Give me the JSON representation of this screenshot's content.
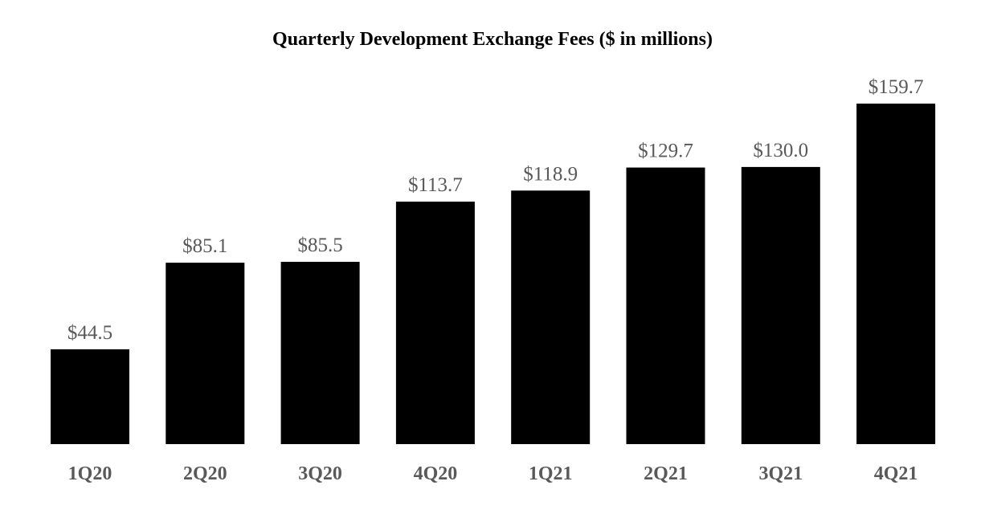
{
  "chart_data": {
    "type": "bar",
    "title": "Quarterly Development Exchange Fees ($ in millions)",
    "categories": [
      "1Q20",
      "2Q20",
      "3Q20",
      "4Q20",
      "1Q21",
      "2Q21",
      "3Q21",
      "4Q21"
    ],
    "values": [
      44.5,
      85.1,
      85.5,
      113.7,
      118.9,
      129.7,
      130.0,
      159.7
    ],
    "value_labels": [
      "$44.5",
      "$85.1",
      "$85.5",
      "$113.7",
      "$118.9",
      "$129.7",
      "$130.0",
      "$159.7"
    ],
    "xlabel": "",
    "ylabel": "",
    "ylim": [
      0,
      160
    ],
    "grid": false,
    "legend": "none"
  },
  "colors": {
    "bar": "#000000",
    "value_label": "#595959",
    "tick_label": "#595959",
    "title": "#000000",
    "background": "#ffffff"
  }
}
